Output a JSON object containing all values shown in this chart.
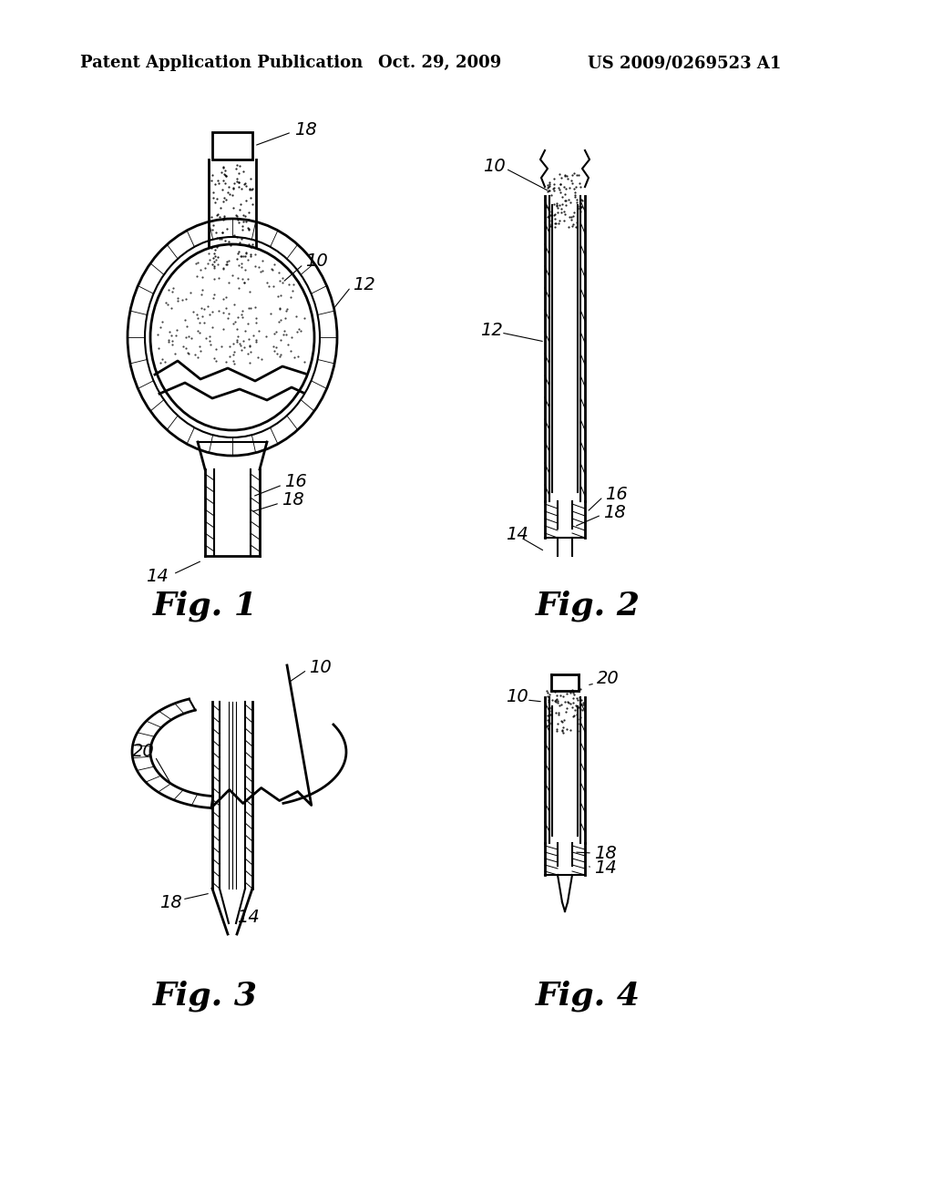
{
  "background_color": "#ffffff",
  "header_left": "Patent Application Publication",
  "header_center": "Oct. 29, 2009",
  "header_right": "US 2009/0269523 A1",
  "header_fontsize": 13
}
